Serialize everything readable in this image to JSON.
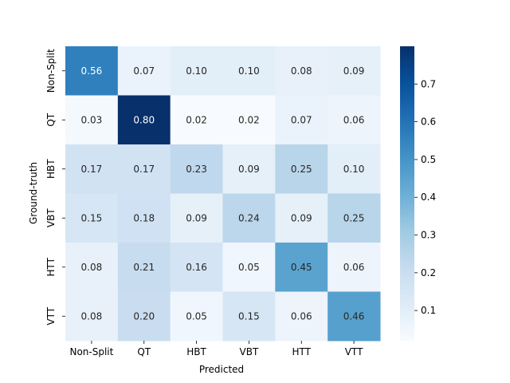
{
  "chart_data": {
    "type": "heatmap",
    "title": "",
    "xlabel": "Predicted",
    "ylabel": "Ground-truth",
    "x_categories": [
      "Non-Split",
      "QT",
      "HBT",
      "VBT",
      "HTT",
      "VTT"
    ],
    "y_categories": [
      "Non-Split",
      "QT",
      "HBT",
      "VBT",
      "HTT",
      "VTT"
    ],
    "values": [
      [
        0.56,
        0.07,
        0.1,
        0.1,
        0.08,
        0.09
      ],
      [
        0.03,
        0.8,
        0.02,
        0.02,
        0.07,
        0.06
      ],
      [
        0.17,
        0.17,
        0.23,
        0.09,
        0.25,
        0.1
      ],
      [
        0.15,
        0.18,
        0.09,
        0.24,
        0.09,
        0.25
      ],
      [
        0.08,
        0.21,
        0.16,
        0.05,
        0.45,
        0.06
      ],
      [
        0.08,
        0.2,
        0.05,
        0.15,
        0.06,
        0.46
      ]
    ],
    "colormap": "Blues",
    "colorbar": {
      "range": [
        0.02,
        0.8
      ],
      "ticks": [
        0.1,
        0.2,
        0.3,
        0.4,
        0.5,
        0.6,
        0.7
      ],
      "tick_labels": [
        "0.1",
        "0.2",
        "0.3",
        "0.4",
        "0.5",
        "0.6",
        "0.7"
      ]
    },
    "annotate_format": "0.00",
    "grid": false
  }
}
